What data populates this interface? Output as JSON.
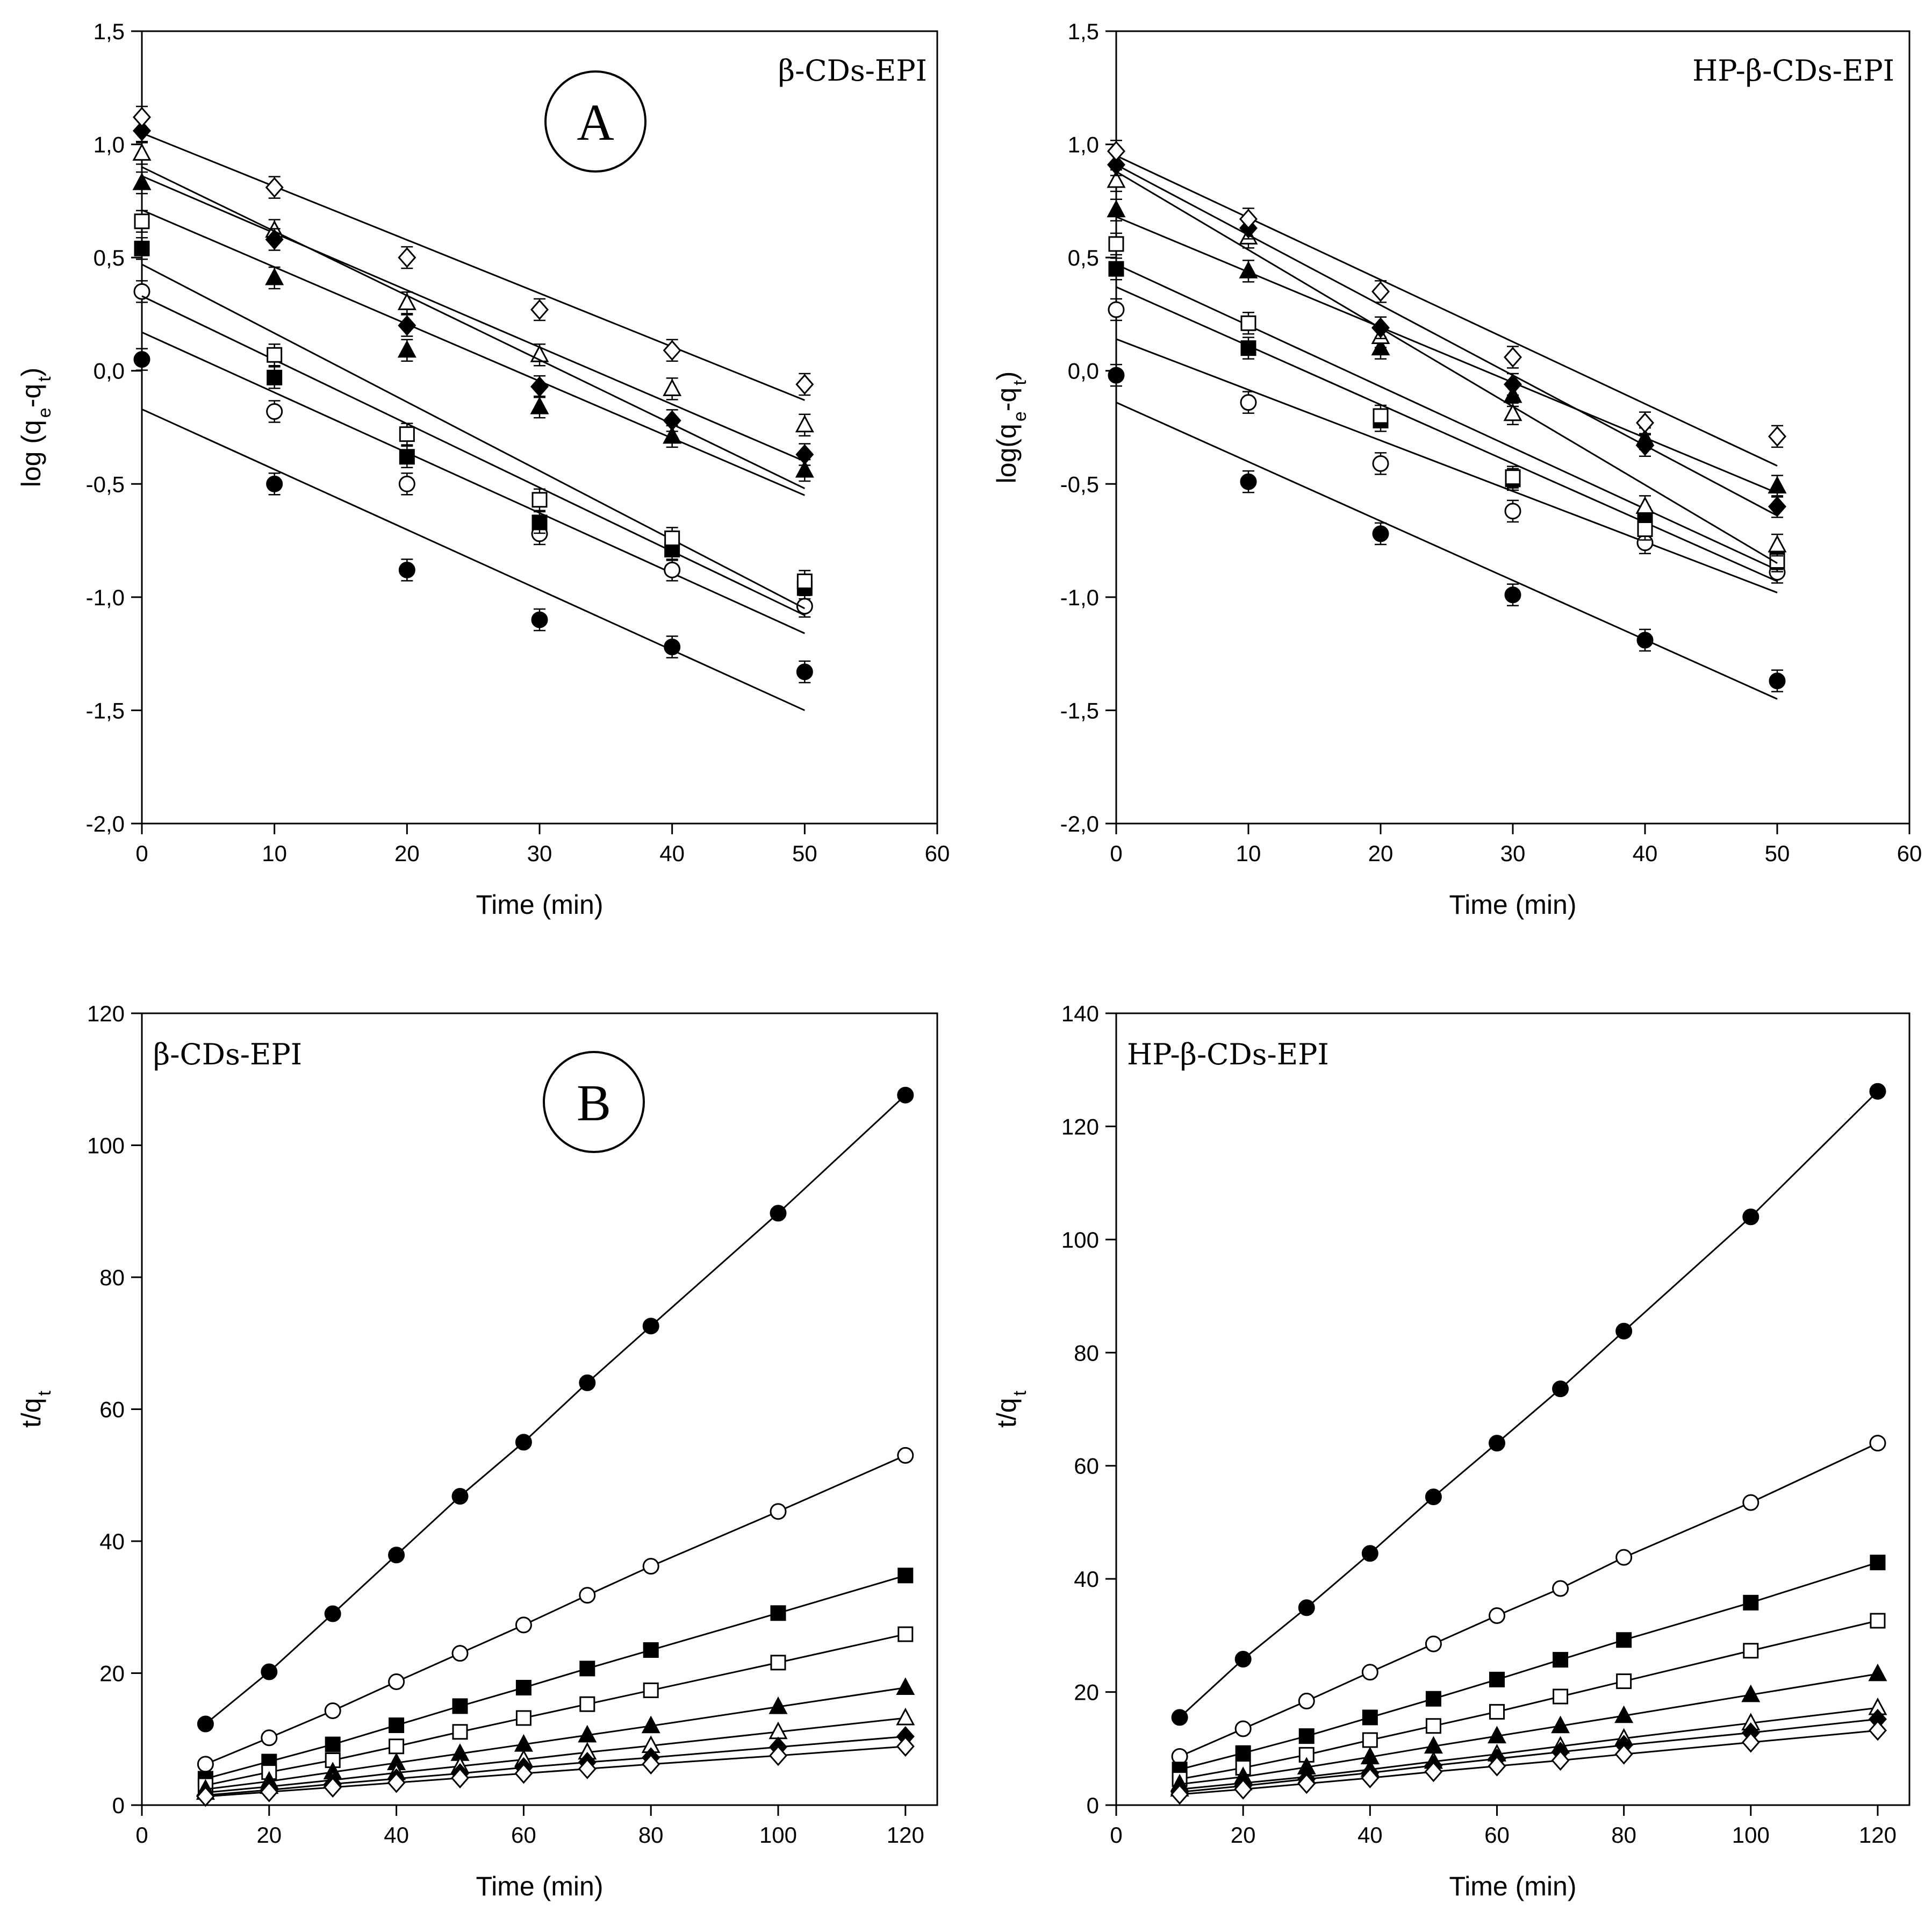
{
  "markers": [
    "filled-circle",
    "open-circle",
    "filled-square",
    "open-square",
    "filled-triangle",
    "open-triangle",
    "filled-diamond",
    "open-diamond"
  ],
  "chart_data": [
    {
      "type": "scatter",
      "panel": "A",
      "title": "β-CDs-EPI",
      "xlabel": "Time (min)",
      "ylabel": [
        "log (q",
        "e",
        "-q",
        "t",
        ")"
      ],
      "xlim": [
        0,
        60
      ],
      "ylim": [
        -2.0,
        1.5
      ],
      "xticks": [
        0,
        10,
        20,
        30,
        40,
        50,
        60
      ],
      "xtick_labels": [
        "0",
        "10",
        "20",
        "30",
        "40",
        "50",
        "60"
      ],
      "yticks": [
        -2.0,
        -1.5,
        -1.0,
        -0.5,
        0.0,
        0.5,
        1.0,
        1.5
      ],
      "ytick_labels": [
        "-2,0",
        "-1,5",
        "-1,0",
        "-0,5",
        "0,0",
        "0,5",
        "1,0",
        "1,5"
      ],
      "x": [
        0,
        10,
        20,
        30,
        40,
        50
      ],
      "fit_range": [
        0,
        50
      ],
      "series": [
        {
          "marker": "filled-circle",
          "values": [
            0.05,
            -0.5,
            -0.88,
            -1.1,
            -1.22,
            -1.33
          ],
          "fit": [
            -0.17,
            -1.5
          ]
        },
        {
          "marker": "open-circle",
          "values": [
            0.35,
            -0.18,
            -0.5,
            -0.72,
            -0.88,
            -1.04
          ],
          "fit": [
            0.17,
            -1.16
          ]
        },
        {
          "marker": "filled-square",
          "values": [
            0.54,
            -0.03,
            -0.38,
            -0.67,
            -0.79,
            -0.96
          ],
          "fit": [
            0.33,
            -1.08
          ]
        },
        {
          "marker": "open-square",
          "values": [
            0.66,
            0.07,
            -0.28,
            -0.57,
            -0.74,
            -0.93
          ],
          "fit": [
            0.47,
            -1.05
          ]
        },
        {
          "marker": "filled-triangle",
          "values": [
            0.83,
            0.41,
            0.09,
            -0.16,
            -0.29,
            -0.44
          ],
          "fit": [
            0.71,
            -0.55
          ]
        },
        {
          "marker": "open-triangle",
          "values": [
            0.96,
            0.62,
            0.3,
            0.07,
            -0.08,
            -0.24
          ],
          "fit": [
            0.86,
            -0.4
          ]
        },
        {
          "marker": "filled-diamond",
          "values": [
            1.06,
            0.58,
            0.2,
            -0.07,
            -0.22,
            -0.37
          ],
          "fit": [
            0.9,
            -0.52
          ]
        },
        {
          "marker": "open-diamond",
          "values": [
            1.12,
            0.81,
            0.5,
            0.27,
            0.09,
            -0.06
          ],
          "fit": [
            1.05,
            -0.13
          ]
        }
      ]
    },
    {
      "type": "scatter",
      "panel": "",
      "title": "HP-β-CDs-EPI",
      "xlabel": "Time (min)",
      "ylabel": [
        "log(q",
        "e",
        "-q",
        "t",
        ")"
      ],
      "xlim": [
        0,
        60
      ],
      "ylim": [
        -2.0,
        1.5
      ],
      "xticks": [
        0,
        10,
        20,
        30,
        40,
        50,
        60
      ],
      "xtick_labels": [
        "0",
        "10",
        "20",
        "30",
        "40",
        "50",
        "60"
      ],
      "yticks": [
        -2.0,
        -1.5,
        -1.0,
        -0.5,
        0.0,
        0.5,
        1.0,
        1.5
      ],
      "ytick_labels": [
        "-2,0",
        "-1,5",
        "-1,0",
        "-0,5",
        "0,0",
        "0,5",
        "1,0",
        "1,5"
      ],
      "x": [
        0,
        10,
        20,
        30,
        40,
        50
      ],
      "fit_range": [
        0,
        50
      ],
      "series": [
        {
          "marker": "filled-circle",
          "values": [
            -0.02,
            -0.49,
            -0.72,
            -0.99,
            -1.19,
            -1.37
          ],
          "fit": [
            -0.14,
            -1.45
          ]
        },
        {
          "marker": "open-circle",
          "values": [
            0.27,
            -0.14,
            -0.41,
            -0.62,
            -0.76,
            -0.89
          ],
          "fit": [
            0.14,
            -0.98
          ]
        },
        {
          "marker": "filled-square",
          "values": [
            0.45,
            0.1,
            -0.22,
            -0.48,
            -0.65,
            -0.83
          ],
          "fit": [
            0.37,
            -0.93
          ]
        },
        {
          "marker": "open-square",
          "values": [
            0.56,
            0.21,
            -0.2,
            -0.47,
            -0.7,
            -0.84
          ],
          "fit": [
            0.47,
            -0.88
          ]
        },
        {
          "marker": "filled-triangle",
          "values": [
            0.71,
            0.44,
            0.1,
            -0.11,
            -0.3,
            -0.51
          ],
          "fit": [
            0.68,
            -0.54
          ]
        },
        {
          "marker": "open-triangle",
          "values": [
            0.84,
            0.59,
            0.15,
            -0.19,
            -0.6,
            -0.77
          ],
          "fit": [
            0.88,
            -0.85
          ]
        },
        {
          "marker": "filled-diamond",
          "values": [
            0.91,
            0.63,
            0.19,
            -0.06,
            -0.33,
            -0.6
          ],
          "fit": [
            0.91,
            -0.64
          ]
        },
        {
          "marker": "open-diamond",
          "values": [
            0.97,
            0.67,
            0.35,
            0.06,
            -0.23,
            -0.29
          ],
          "fit": [
            0.95,
            -0.42
          ]
        }
      ]
    },
    {
      "type": "line",
      "panel": "B",
      "title": "β-CDs-EPI",
      "xlabel": "Time (min)",
      "ylabel": [
        "t/q",
        "t"
      ],
      "xlim": [
        0,
        125
      ],
      "ylim": [
        0,
        120
      ],
      "xticks": [
        0,
        20,
        40,
        60,
        80,
        100,
        120
      ],
      "xtick_labels": [
        "0",
        "20",
        "40",
        "60",
        "80",
        "100",
        "120"
      ],
      "yticks": [
        0,
        20,
        40,
        60,
        80,
        100,
        120
      ],
      "ytick_labels": [
        "0",
        "20",
        "40",
        "60",
        "80",
        "100",
        "120"
      ],
      "x": [
        10,
        20,
        30,
        40,
        50,
        60,
        70,
        80,
        100,
        120
      ],
      "series": [
        {
          "marker": "filled-circle",
          "values": [
            12.3,
            20.2,
            29.0,
            37.9,
            46.8,
            55.0,
            64.0,
            72.6,
            89.7,
            107.6
          ]
        },
        {
          "marker": "open-circle",
          "values": [
            6.2,
            10.2,
            14.3,
            18.7,
            23.0,
            27.3,
            31.8,
            36.2,
            44.5,
            53.0
          ]
        },
        {
          "marker": "filled-square",
          "values": [
            4.0,
            6.6,
            9.2,
            12.1,
            15.0,
            17.8,
            20.7,
            23.5,
            29.1,
            34.8
          ]
        },
        {
          "marker": "open-square",
          "values": [
            3.0,
            5.0,
            6.8,
            8.9,
            11.1,
            13.2,
            15.3,
            17.4,
            21.6,
            25.9
          ]
        },
        {
          "marker": "filled-triangle",
          "values": [
            2.4,
            3.6,
            5.0,
            6.4,
            7.8,
            9.2,
            10.6,
            12.0,
            14.9,
            17.8
          ]
        },
        {
          "marker": "open-triangle",
          "values": [
            1.9,
            2.8,
            3.8,
            4.9,
            5.9,
            6.9,
            8.0,
            9.0,
            11.1,
            13.2
          ]
        },
        {
          "marker": "filled-diamond",
          "values": [
            1.5,
            2.3,
            3.2,
            4.0,
            4.8,
            5.7,
            6.5,
            7.2,
            8.8,
            10.4
          ]
        },
        {
          "marker": "open-diamond",
          "values": [
            1.3,
            2.0,
            2.7,
            3.4,
            4.1,
            4.8,
            5.5,
            6.2,
            7.5,
            8.9
          ]
        }
      ]
    },
    {
      "type": "line",
      "panel": "",
      "title": "HP-β-CDs-EPI",
      "xlabel": "Time (min)",
      "ylabel": [
        "t/q",
        "t"
      ],
      "xlim": [
        0,
        125
      ],
      "ylim": [
        0,
        140
      ],
      "xticks": [
        0,
        20,
        40,
        60,
        80,
        100,
        120
      ],
      "xtick_labels": [
        "0",
        "20",
        "40",
        "60",
        "80",
        "100",
        "120"
      ],
      "yticks": [
        0,
        20,
        40,
        60,
        80,
        100,
        120,
        140
      ],
      "ytick_labels": [
        "0",
        "20",
        "40",
        "60",
        "80",
        "100",
        "120",
        "140"
      ],
      "x": [
        10,
        20,
        30,
        40,
        50,
        60,
        70,
        80,
        100,
        120
      ],
      "series": [
        {
          "marker": "filled-circle",
          "values": [
            15.5,
            25.8,
            34.9,
            44.5,
            54.5,
            64.0,
            73.6,
            83.8,
            104.0,
            126.2
          ]
        },
        {
          "marker": "open-circle",
          "values": [
            8.6,
            13.5,
            18.4,
            23.5,
            28.5,
            33.5,
            38.3,
            43.8,
            53.5,
            64.0
          ]
        },
        {
          "marker": "filled-square",
          "values": [
            6.3,
            9.2,
            12.2,
            15.5,
            18.8,
            22.2,
            25.7,
            29.2,
            35.8,
            42.9
          ]
        },
        {
          "marker": "open-square",
          "values": [
            4.6,
            6.6,
            8.9,
            11.5,
            14.0,
            16.5,
            19.2,
            21.9,
            27.3,
            32.6
          ]
        },
        {
          "marker": "filled-triangle",
          "values": [
            3.7,
            5.0,
            6.7,
            8.5,
            10.4,
            12.2,
            14.0,
            15.8,
            19.5,
            23.2
          ]
        },
        {
          "marker": "open-triangle",
          "values": [
            2.8,
            3.9,
            5.0,
            6.3,
            7.7,
            9.0,
            10.4,
            11.8,
            14.5,
            17.2
          ]
        },
        {
          "marker": "filled-diamond",
          "values": [
            2.3,
            3.4,
            4.6,
            5.7,
            7.0,
            8.2,
            9.4,
            10.6,
            12.8,
            15.2
          ]
        },
        {
          "marker": "open-diamond",
          "values": [
            1.9,
            2.8,
            3.8,
            4.8,
            5.9,
            6.9,
            7.9,
            9.0,
            11.1,
            13.2
          ]
        }
      ]
    }
  ]
}
